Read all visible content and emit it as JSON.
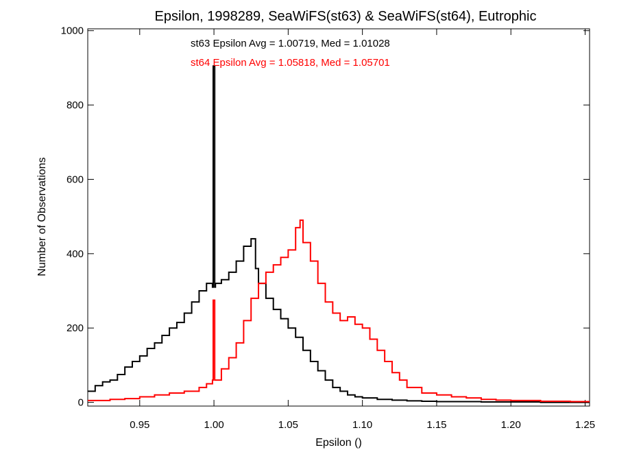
{
  "chart_data": {
    "type": "line",
    "step": true,
    "title": "Epsilon, 1998289, SeaWiFS(st63) & SeaWiFS(st64), Eutrophic",
    "xlabel": "Epsilon ()",
    "ylabel": "Number of Observations",
    "xlim": [
      0.915,
      1.253
    ],
    "ylim": [
      -10,
      1005
    ],
    "xticks": [
      {
        "value": 0.95,
        "label": "0.95"
      },
      {
        "value": 1.0,
        "label": "1.00"
      },
      {
        "value": 1.05,
        "label": "1.05"
      },
      {
        "value": 1.1,
        "label": "1.10"
      },
      {
        "value": 1.15,
        "label": "1.15"
      },
      {
        "value": 1.2,
        "label": "1.20"
      },
      {
        "value": 1.25,
        "label": "1.25"
      }
    ],
    "yticks": [
      {
        "value": 0,
        "label": "0"
      },
      {
        "value": 200,
        "label": "200"
      },
      {
        "value": 400,
        "label": "400"
      },
      {
        "value": 600,
        "label": "600"
      },
      {
        "value": 800,
        "label": "800"
      },
      {
        "value": 1000,
        "label": "1000"
      }
    ],
    "annotations": [
      {
        "text": "st63 Epsilon Avg = 1.00719, Med = 1.01028",
        "color": "#000000"
      },
      {
        "text": "st64 Epsilon Avg = 1.05818, Med = 1.05701",
        "color": "#ff0000"
      }
    ],
    "series": [
      {
        "color": "#000000",
        "x": [
          0.915,
          0.92,
          0.925,
          0.93,
          0.935,
          0.94,
          0.945,
          0.95,
          0.955,
          0.96,
          0.965,
          0.97,
          0.975,
          0.98,
          0.985,
          0.99,
          0.995,
          0.999,
          0.9995,
          1.0005,
          1.001,
          1.005,
          1.01,
          1.015,
          1.02,
          1.025,
          1.028,
          1.03,
          1.035,
          1.04,
          1.045,
          1.05,
          1.055,
          1.06,
          1.065,
          1.07,
          1.075,
          1.08,
          1.085,
          1.09,
          1.095,
          1.1,
          1.11,
          1.12,
          1.13,
          1.14,
          1.15,
          1.16,
          1.18,
          1.2,
          1.22,
          1.24,
          1.253
        ],
        "y": [
          30,
          45,
          55,
          60,
          75,
          95,
          110,
          125,
          145,
          160,
          180,
          200,
          215,
          240,
          270,
          300,
          320,
          310,
          905,
          310,
          320,
          330,
          350,
          380,
          420,
          440,
          360,
          320,
          280,
          250,
          225,
          200,
          175,
          140,
          110,
          85,
          60,
          40,
          30,
          20,
          15,
          12,
          8,
          6,
          4,
          3,
          2,
          2,
          1,
          1,
          0,
          0,
          0
        ]
      },
      {
        "color": "#ff0000",
        "x": [
          0.915,
          0.92,
          0.93,
          0.94,
          0.95,
          0.96,
          0.97,
          0.98,
          0.99,
          0.995,
          0.999,
          0.9995,
          1.0005,
          1.005,
          1.01,
          1.015,
          1.02,
          1.025,
          1.03,
          1.035,
          1.04,
          1.045,
          1.05,
          1.055,
          1.058,
          1.06,
          1.065,
          1.07,
          1.075,
          1.08,
          1.085,
          1.09,
          1.095,
          1.1,
          1.105,
          1.11,
          1.115,
          1.12,
          1.125,
          1.13,
          1.14,
          1.15,
          1.16,
          1.17,
          1.18,
          1.19,
          1.2,
          1.22,
          1.24,
          1.253
        ],
        "y": [
          5,
          5,
          8,
          10,
          15,
          20,
          25,
          30,
          40,
          50,
          60,
          275,
          60,
          90,
          120,
          160,
          220,
          280,
          320,
          350,
          370,
          390,
          410,
          470,
          490,
          430,
          380,
          320,
          270,
          240,
          220,
          230,
          210,
          200,
          170,
          140,
          110,
          80,
          60,
          40,
          25,
          20,
          15,
          12,
          8,
          6,
          5,
          3,
          2,
          2
        ]
      }
    ]
  }
}
